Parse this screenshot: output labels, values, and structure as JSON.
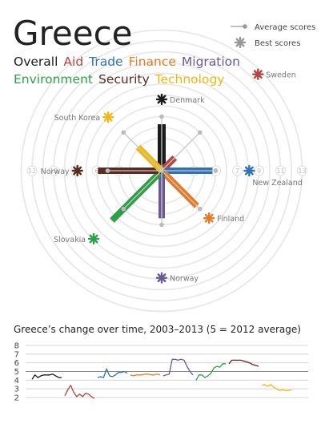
{
  "title": "Greece",
  "legend": {
    "average": "Average scores",
    "best": "Best scores"
  },
  "components": [
    {
      "name": "Overall",
      "color": "#1a1a1a",
      "score": 4.3,
      "best_country": "Denmark",
      "best_score": 6.6,
      "history": [
        4.1,
        4.6,
        4.3,
        4.5,
        4.6,
        4.6,
        4.6,
        4.7,
        4.5,
        4.3,
        4.3
      ]
    },
    {
      "name": "Aid",
      "color": "#b5443f",
      "score": 1.7,
      "best_country": "Sweden",
      "best_score": 12.6,
      "history": [
        2.2,
        2.9,
        3.4,
        2.6,
        2.1,
        2.4,
        2.1,
        2.5,
        2.4,
        2.1,
        1.9
      ]
    },
    {
      "name": "Trade",
      "color": "#2d73b8",
      "score": 4.7,
      "best_country": "New Zealand",
      "best_score": 8.1,
      "history": [
        4.3,
        4.4,
        4.3,
        5.3,
        4.5,
        4.4,
        4.6,
        4.9,
        4.9,
        5.0,
        4.8
      ]
    },
    {
      "name": "Finance",
      "color": "#e57b25",
      "score": 4.6,
      "best_country": "Finland",
      "best_score": 6.2,
      "history": [
        4.6,
        4.5,
        4.6,
        4.6,
        4.6,
        4.7,
        4.7,
        4.6,
        4.6,
        4.7,
        4.6
      ]
    },
    {
      "name": "Migration",
      "color": "#6a5a94",
      "score": 4.4,
      "best_country": "Norway",
      "best_score": 9.9,
      "history": [
        4.5,
        4.6,
        4.7,
        6.4,
        6.4,
        6.3,
        6.4,
        6.3,
        5.6,
        5.0,
        4.6
      ]
    },
    {
      "name": "Environment",
      "color": "#2e9e47",
      "score": 6.5,
      "best_country": "Slovakia",
      "best_score": 8.9,
      "history": [
        4.0,
        4.6,
        4.6,
        4.3,
        4.5,
        4.8,
        5.4,
        5.6,
        5.5,
        5.9,
        5.9
      ]
    },
    {
      "name": "Security",
      "color": "#5b2a22",
      "score": 5.9,
      "best_country": "Norway",
      "best_score": 7.8,
      "history": [
        5.9,
        6.3,
        6.3,
        6.3,
        6.3,
        6.2,
        6.1,
        6.0,
        5.8,
        5.7,
        5.6
      ]
    },
    {
      "name": "Technology",
      "color": "#f1b712",
      "score": 3.1,
      "best_country": "South Korea",
      "best_score": 7.0,
      "history": [
        3.4,
        3.5,
        3.3,
        3.5,
        3.2,
        3.0,
        2.8,
        2.9,
        2.8,
        2.8,
        2.9
      ]
    }
  ],
  "radial": {
    "average": 5,
    "rticks": [
      3,
      4,
      5,
      6,
      7,
      8,
      9,
      10,
      11,
      12,
      13
    ]
  },
  "line_chart": {
    "title": "Greece’s change over time, 2003–2013 (5 = 2012 average)",
    "ylim": [
      2,
      8
    ],
    "yticks": [
      2,
      3,
      4,
      5,
      6,
      7,
      8
    ],
    "reference": 5
  }
}
